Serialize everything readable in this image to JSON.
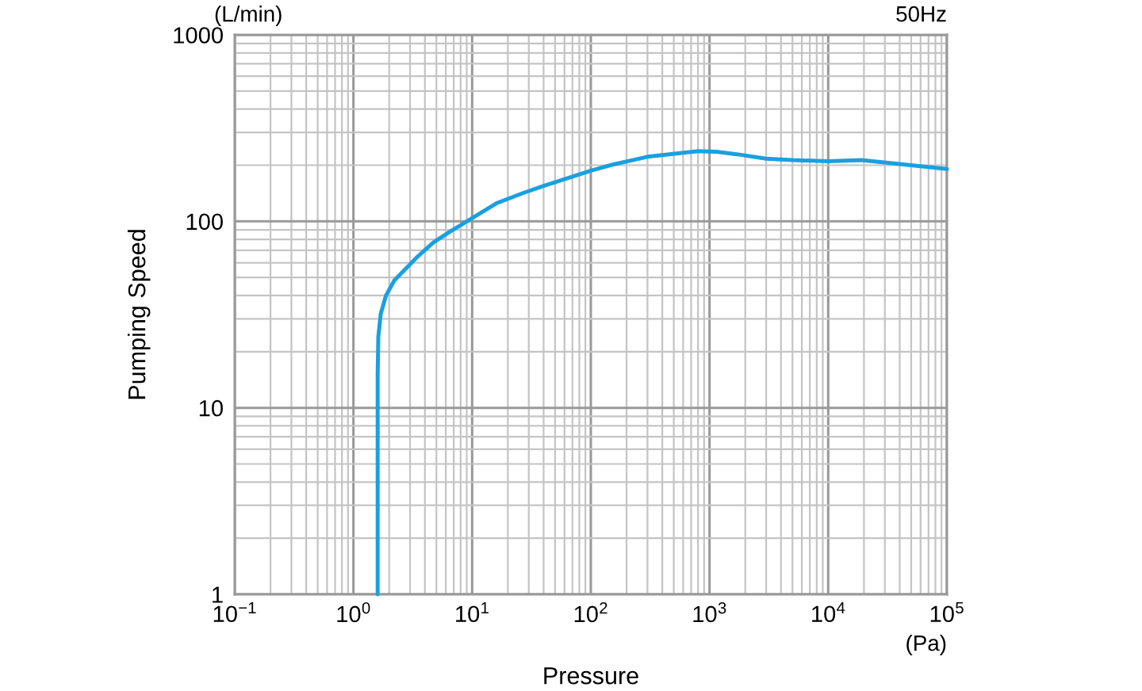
{
  "chart_data": {
    "type": "line",
    "xlabel": "Pressure",
    "ylabel": "Pumping Speed",
    "log": "xy",
    "grid": true,
    "annotations": [
      "(L/min)",
      "50Hz",
      "(Pa)"
    ],
    "xlim": [
      0.1,
      100000
    ],
    "ylim": [
      1,
      1000
    ],
    "xticks": [
      {
        "value": 0.1,
        "label": "10$^{−1}$"
      },
      {
        "value": 1,
        "label": "10$^{0}$"
      },
      {
        "value": 10,
        "label": "10$^{1}$"
      },
      {
        "value": 100,
        "label": "10$^{2}$"
      },
      {
        "value": 1000,
        "label": "10$^{3}$"
      },
      {
        "value": 10000,
        "label": "10$^{4}$"
      },
      {
        "value": 100000,
        "label": "10$^{5}$"
      }
    ],
    "yticks": [
      1,
      10,
      100,
      1000
    ],
    "series": [
      {
        "color": "#1aa0e0",
        "x": [
          1.6,
          1.6,
          1.6,
          1.62,
          1.7,
          1.88,
          2.2,
          2.7,
          3.5,
          4.7,
          6.5,
          8.8,
          16,
          27,
          40,
          100,
          150,
          300,
          800,
          1150,
          1700,
          3000,
          5000,
          10000,
          19000,
          40000,
          100000
        ],
        "values": [
          1,
          5,
          15,
          24,
          32,
          40,
          48,
          55,
          65,
          77,
          88,
          99,
          125,
          142,
          155,
          187,
          201,
          222,
          238,
          236,
          229,
          217,
          213,
          210,
          213,
          203,
          191
        ]
      }
    ]
  }
}
